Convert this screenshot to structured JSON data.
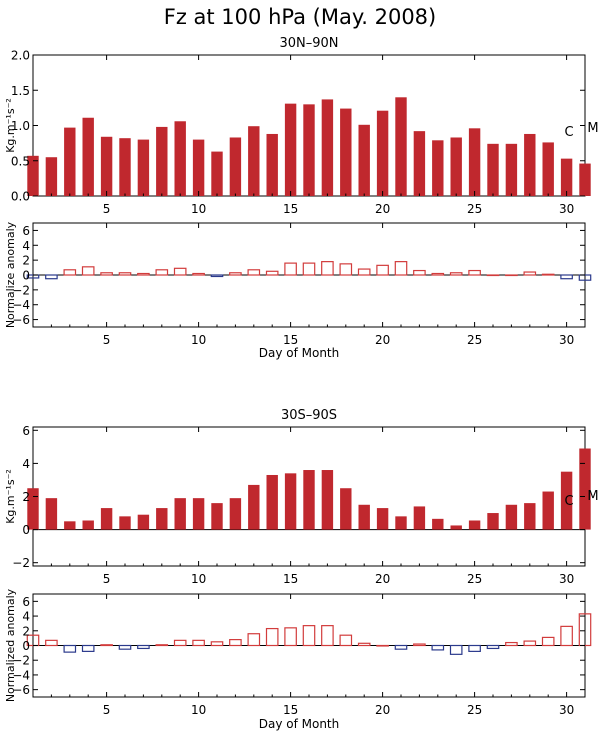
{
  "title": "Fz at 100 hPa (May. 2008)",
  "colors": {
    "bar_fill": "#c0282e",
    "positive_anomaly": "#d23c3c",
    "negative_anomaly": "#2b3a8c",
    "axis": "#000000"
  },
  "chart_data": [
    {
      "type": "bar",
      "title": "30N–90N",
      "ylabel": "Kg.m⁻¹s⁻²",
      "xlim": [
        1,
        31
      ],
      "ylim": [
        0.0,
        2.0
      ],
      "yticks": [
        "0.0",
        "0.5",
        "1.0",
        "1.5",
        "2.0"
      ],
      "xticks": [
        "5",
        "10",
        "15",
        "20",
        "25",
        "30"
      ],
      "annotations": [
        "C",
        "M"
      ],
      "x": [
        1,
        2,
        3,
        4,
        5,
        6,
        7,
        8,
        9,
        10,
        11,
        12,
        13,
        14,
        15,
        16,
        17,
        18,
        19,
        20,
        21,
        22,
        23,
        24,
        25,
        26,
        27,
        28,
        29,
        30,
        31
      ],
      "values": [
        0.57,
        0.55,
        0.97,
        1.11,
        0.84,
        0.82,
        0.8,
        0.98,
        1.06,
        0.8,
        0.63,
        0.83,
        0.99,
        0.88,
        1.31,
        1.3,
        1.37,
        1.24,
        1.01,
        1.21,
        1.4,
        0.92,
        0.79,
        0.83,
        0.96,
        0.74,
        0.74,
        0.88,
        0.76,
        0.53,
        0.46
      ]
    },
    {
      "type": "bar",
      "title": "",
      "xlabel": "Day of Month",
      "ylabel": "Normalize anomaly",
      "xlim": [
        1,
        31
      ],
      "ylim": [
        -7,
        7
      ],
      "yticks": [
        "−6",
        "−4",
        "−2",
        "0",
        "2",
        "4",
        "6"
      ],
      "xticks": [
        "5",
        "10",
        "15",
        "20",
        "25",
        "30"
      ],
      "x": [
        1,
        2,
        3,
        4,
        5,
        6,
        7,
        8,
        9,
        10,
        11,
        12,
        13,
        14,
        15,
        16,
        17,
        18,
        19,
        20,
        21,
        22,
        23,
        24,
        25,
        26,
        27,
        28,
        29,
        30,
        31
      ],
      "values": [
        -0.4,
        -0.5,
        0.7,
        1.1,
        0.3,
        0.3,
        0.2,
        0.7,
        0.9,
        0.2,
        -0.2,
        0.3,
        0.7,
        0.5,
        1.6,
        1.6,
        1.8,
        1.5,
        0.8,
        1.3,
        1.8,
        0.6,
        0.2,
        0.3,
        0.6,
        0.0,
        0.0,
        0.4,
        0.1,
        -0.5,
        -0.7
      ]
    },
    {
      "type": "bar",
      "title": "30S–90S",
      "ylabel": "Kg.m⁻¹s⁻²",
      "xlim": [
        1,
        31
      ],
      "ylim": [
        -2.2,
        6.2
      ],
      "yticks": [
        "−2",
        "0",
        "2",
        "4",
        "6"
      ],
      "xticks": [
        "5",
        "10",
        "15",
        "20",
        "25",
        "30"
      ],
      "annotations": [
        "C",
        "M"
      ],
      "x": [
        1,
        2,
        3,
        4,
        5,
        6,
        7,
        8,
        9,
        10,
        11,
        12,
        13,
        14,
        15,
        16,
        17,
        18,
        19,
        20,
        21,
        22,
        23,
        24,
        25,
        26,
        27,
        28,
        29,
        30,
        31
      ],
      "values": [
        2.5,
        1.9,
        0.5,
        0.55,
        1.3,
        0.8,
        0.9,
        1.3,
        1.9,
        1.9,
        1.6,
        1.9,
        2.7,
        3.3,
        3.4,
        3.6,
        3.6,
        2.5,
        1.5,
        1.3,
        0.8,
        1.4,
        0.65,
        0.25,
        0.55,
        1.0,
        1.5,
        1.6,
        2.3,
        3.5,
        4.9
      ]
    },
    {
      "type": "bar",
      "title": "",
      "xlabel": "Day of Month",
      "ylabel": "Normalized anomaly",
      "xlim": [
        1,
        31
      ],
      "ylim": [
        -7,
        7
      ],
      "yticks": [
        "−6",
        "−4",
        "−2",
        "0",
        "2",
        "4",
        "6"
      ],
      "xticks": [
        "5",
        "10",
        "15",
        "20",
        "25",
        "30"
      ],
      "x": [
        1,
        2,
        3,
        4,
        5,
        6,
        7,
        8,
        9,
        10,
        11,
        12,
        13,
        14,
        15,
        16,
        17,
        18,
        19,
        20,
        21,
        22,
        23,
        24,
        25,
        26,
        27,
        28,
        29,
        30,
        31
      ],
      "values": [
        1.4,
        0.7,
        -0.9,
        -0.8,
        0.1,
        -0.5,
        -0.4,
        0.1,
        0.7,
        0.7,
        0.5,
        0.8,
        1.6,
        2.3,
        2.4,
        2.7,
        2.7,
        1.4,
        0.3,
        0.0,
        -0.5,
        0.2,
        -0.6,
        -1.2,
        -0.8,
        -0.4,
        0.4,
        0.6,
        1.1,
        2.6,
        4.3
      ]
    }
  ]
}
